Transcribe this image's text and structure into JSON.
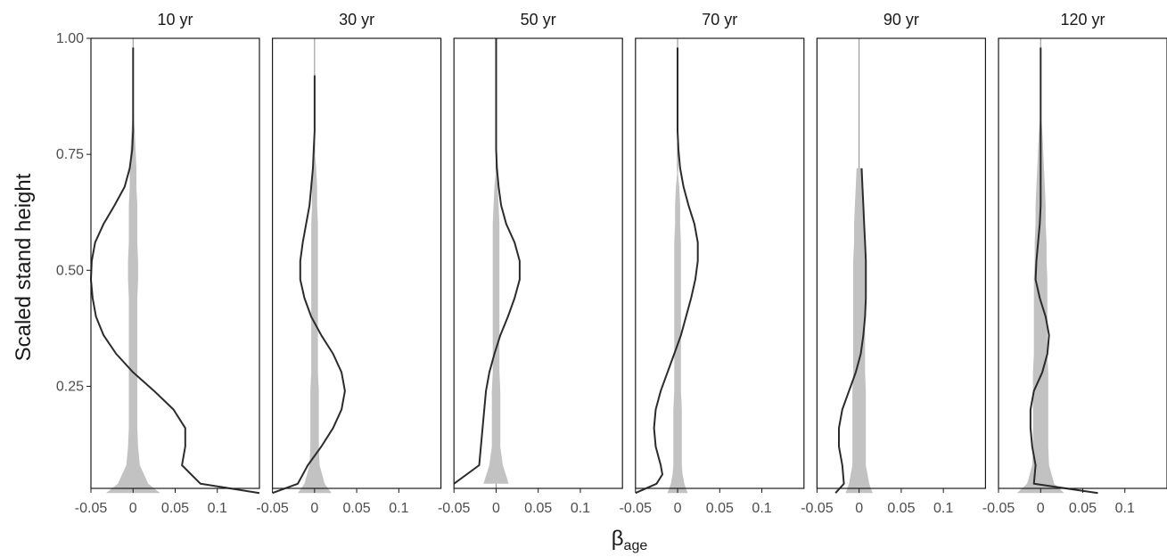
{
  "chart_data": {
    "type": "line",
    "ylabel": "Scaled stand height",
    "xlabel": "β",
    "xlabel_subscript": "age",
    "xlim": [
      -0.05,
      0.15
    ],
    "ylim": [
      0.0,
      1.0
    ],
    "xticks": [
      -0.05,
      0,
      0.05,
      0.1
    ],
    "xtick_labels": [
      "-0.05",
      "0",
      "0.05",
      "0.1"
    ],
    "yticks": [
      0.25,
      0.5,
      0.75,
      1.0
    ],
    "ytick_labels": [
      "0.25",
      "0.50",
      "0.75",
      "1.00"
    ],
    "colors": {
      "line": "#2b2b2b",
      "band": "#c2c2c2",
      "zero_line": "#8a8a8a",
      "axis": "#1a1a1a"
    },
    "panels": [
      {
        "title": "10 yr",
        "y": [
          0.02,
          0.04,
          0.08,
          0.12,
          0.16,
          0.2,
          0.24,
          0.28,
          0.32,
          0.36,
          0.4,
          0.44,
          0.48,
          0.52,
          0.56,
          0.6,
          0.64,
          0.68,
          0.72,
          0.76,
          0.8,
          0.84,
          0.88,
          0.92,
          0.96,
          0.98
        ],
        "x": [
          0.15,
          0.08,
          0.058,
          0.062,
          0.062,
          0.048,
          0.025,
          0.0,
          -0.02,
          -0.035,
          -0.044,
          -0.048,
          -0.05,
          -0.049,
          -0.045,
          -0.035,
          -0.022,
          -0.01,
          -0.004,
          -0.001,
          0.0,
          0.0,
          0.0,
          0.0,
          0.0,
          0.0
        ],
        "band_half_width": [
          0.032,
          0.018,
          0.008,
          0.006,
          0.005,
          0.005,
          0.005,
          0.005,
          0.005,
          0.005,
          0.005,
          0.005,
          0.006,
          0.006,
          0.005,
          0.005,
          0.005,
          0.004,
          0.004,
          0.003,
          0.002,
          0.0,
          0.0,
          0.0,
          0.0,
          0.0
        ]
      },
      {
        "title": "30 yr",
        "y": [
          0.02,
          0.04,
          0.08,
          0.12,
          0.16,
          0.2,
          0.24,
          0.28,
          0.32,
          0.36,
          0.4,
          0.44,
          0.48,
          0.52,
          0.56,
          0.6,
          0.64,
          0.68,
          0.72,
          0.76,
          0.8,
          0.84,
          0.88,
          0.92
        ],
        "x": [
          -0.05,
          -0.02,
          -0.008,
          0.008,
          0.022,
          0.032,
          0.036,
          0.032,
          0.022,
          0.008,
          -0.004,
          -0.012,
          -0.017,
          -0.017,
          -0.014,
          -0.01,
          -0.006,
          -0.004,
          -0.002,
          -0.001,
          0.0,
          0.0,
          0.0,
          0.0
        ],
        "band_half_width": [
          0.02,
          0.012,
          0.006,
          0.005,
          0.005,
          0.005,
          0.005,
          0.004,
          0.004,
          0.004,
          0.004,
          0.004,
          0.004,
          0.004,
          0.004,
          0.004,
          0.003,
          0.003,
          0.002,
          0.0,
          0.0,
          0.0,
          0.0,
          0.0
        ]
      },
      {
        "title": "50 yr",
        "y": [
          0.04,
          0.08,
          0.12,
          0.16,
          0.2,
          0.24,
          0.28,
          0.32,
          0.36,
          0.4,
          0.44,
          0.48,
          0.52,
          0.56,
          0.6,
          0.64,
          0.68,
          0.72,
          0.76,
          0.8,
          0.84,
          0.88,
          0.92,
          0.96,
          1.0
        ],
        "x": [
          -0.05,
          -0.02,
          -0.018,
          -0.016,
          -0.014,
          -0.012,
          -0.008,
          -0.002,
          0.005,
          0.014,
          0.022,
          0.028,
          0.028,
          0.022,
          0.012,
          0.006,
          0.003,
          0.001,
          0.0,
          0.0,
          0.0,
          0.0,
          0.0,
          0.0,
          0.0
        ],
        "band_half_width": [
          0.015,
          0.008,
          0.005,
          0.005,
          0.005,
          0.005,
          0.004,
          0.004,
          0.004,
          0.004,
          0.004,
          0.004,
          0.004,
          0.004,
          0.004,
          0.003,
          0.002,
          0.0,
          0.0,
          0.0,
          0.0,
          0.0,
          0.0,
          0.0,
          0.0
        ]
      },
      {
        "title": "70 yr",
        "y": [
          0.02,
          0.04,
          0.06,
          0.08,
          0.12,
          0.16,
          0.2,
          0.24,
          0.28,
          0.32,
          0.36,
          0.4,
          0.44,
          0.48,
          0.52,
          0.56,
          0.6,
          0.64,
          0.68,
          0.72,
          0.76,
          0.8,
          0.84,
          0.88,
          0.92,
          0.96,
          0.98
        ],
        "x": [
          -0.05,
          -0.025,
          -0.018,
          -0.02,
          -0.026,
          -0.028,
          -0.026,
          -0.02,
          -0.012,
          -0.004,
          0.004,
          0.01,
          0.016,
          0.021,
          0.024,
          0.024,
          0.02,
          0.013,
          0.007,
          0.003,
          0.001,
          0.0,
          0.0,
          0.0,
          0.0,
          0.0,
          0.0
        ],
        "band_half_width": [
          0.012,
          0.008,
          0.006,
          0.005,
          0.005,
          0.005,
          0.005,
          0.004,
          0.004,
          0.004,
          0.004,
          0.004,
          0.004,
          0.004,
          0.004,
          0.004,
          0.003,
          0.003,
          0.002,
          0.0,
          0.0,
          0.0,
          0.0,
          0.0,
          0.0,
          0.0,
          0.0
        ]
      },
      {
        "title": "90 yr",
        "y": [
          0.02,
          0.04,
          0.08,
          0.12,
          0.16,
          0.2,
          0.24,
          0.28,
          0.32,
          0.36,
          0.4,
          0.44,
          0.48,
          0.52,
          0.56,
          0.6,
          0.64,
          0.68,
          0.72
        ],
        "x": [
          -0.028,
          -0.018,
          -0.02,
          -0.024,
          -0.024,
          -0.02,
          -0.012,
          -0.004,
          0.002,
          0.005,
          0.007,
          0.008,
          0.008,
          0.008,
          0.007,
          0.006,
          0.005,
          0.004,
          0.003
        ],
        "band_half_width": [
          0.016,
          0.012,
          0.008,
          0.008,
          0.008,
          0.008,
          0.008,
          0.007,
          0.007,
          0.007,
          0.007,
          0.007,
          0.007,
          0.007,
          0.006,
          0.006,
          0.005,
          0.004,
          0.003
        ]
      },
      {
        "title": "120 yr",
        "y": [
          0.02,
          0.04,
          0.08,
          0.12,
          0.16,
          0.2,
          0.24,
          0.28,
          0.32,
          0.36,
          0.4,
          0.44,
          0.48,
          0.52,
          0.56,
          0.6,
          0.64,
          0.68,
          0.72,
          0.76,
          0.8,
          0.84,
          0.88,
          0.92,
          0.96,
          0.98
        ],
        "x": [
          0.068,
          -0.008,
          -0.006,
          -0.01,
          -0.012,
          -0.012,
          -0.008,
          0.002,
          0.008,
          0.01,
          0.006,
          -0.001,
          -0.006,
          -0.005,
          -0.003,
          -0.001,
          0.0,
          0.0,
          0.0,
          0.0,
          0.0,
          0.0,
          0.0,
          0.0,
          0.0,
          0.0
        ],
        "band_half_width": [
          0.028,
          0.016,
          0.01,
          0.009,
          0.009,
          0.009,
          0.009,
          0.009,
          0.008,
          0.008,
          0.008,
          0.008,
          0.008,
          0.007,
          0.007,
          0.006,
          0.006,
          0.005,
          0.004,
          0.003,
          0.002,
          0.0,
          0.0,
          0.0,
          0.0,
          0.0
        ]
      }
    ]
  }
}
